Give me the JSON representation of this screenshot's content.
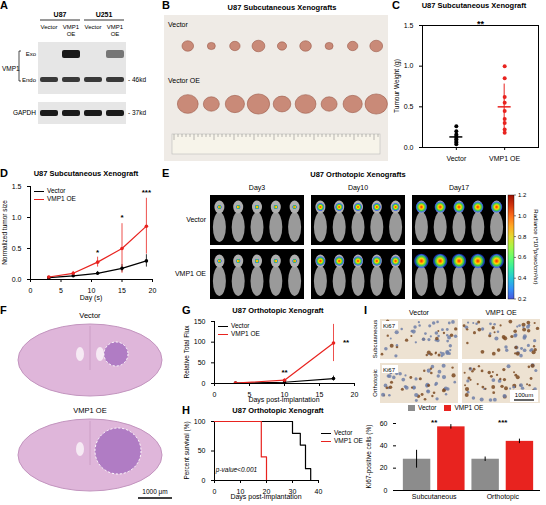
{
  "chart_data": [
    {
      "panel": "C",
      "type": "scatter",
      "title": "U87 Subcutaneous Xenograft",
      "y_label": "Tumour Weight (g)",
      "marker": "circle",
      "series": [
        {
          "name": "Vector",
          "color": "#000000",
          "values": [
            0.04,
            0.06,
            0.08,
            0.1,
            0.12,
            0.14,
            0.16,
            0.2,
            0.26
          ],
          "mean": 0.13,
          "sd": 0.07
        },
        {
          "name": "VMP1 OE",
          "color": "#e8231f",
          "values": [
            0.18,
            0.22,
            0.3,
            0.35,
            0.45,
            0.55,
            0.62,
            0.85,
            1.0
          ],
          "mean": 0.5,
          "sd": 0.28
        }
      ],
      "ylim": [
        0,
        1.5
      ],
      "yticks": [
        {
          "value": 0,
          "label": "0.0"
        },
        0.5,
        {
          "value": 1,
          "label": "1.0"
        },
        1.5
      ],
      "annotations": [
        {
          "text": "**"
        }
      ]
    },
    {
      "panel": "D",
      "type": "line",
      "title": "U87 Subcutaneous Xenograft",
      "x_label": "Day (s)",
      "y_label": "Normalized tumor size",
      "marker": "circle",
      "legend": "top-left",
      "x": [
        3,
        7,
        11,
        15,
        19
      ],
      "series": [
        {
          "name": "Vector",
          "color": "#000000",
          "values": [
            0.03,
            0.06,
            0.1,
            0.18,
            0.3
          ],
          "errors": [
            0.01,
            0.02,
            0.03,
            0.06,
            0.1
          ]
        },
        {
          "name": "VMP1 OE",
          "color": "#e8231f",
          "values": [
            0.04,
            0.1,
            0.28,
            0.5,
            0.86
          ],
          "errors": [
            0.01,
            0.03,
            0.08,
            0.4,
            0.45
          ]
        }
      ],
      "xlim": [
        0,
        20
      ],
      "xticks": [
        0,
        5,
        10,
        15,
        20
      ],
      "ylim": [
        0,
        1.5
      ],
      "yticks": [
        {
          "value": 0,
          "label": "0.0"
        },
        0.5,
        {
          "value": 1,
          "label": "1.0"
        },
        1.5
      ],
      "annotations": [
        {
          "x": 11,
          "y": 0.44,
          "text": "*"
        },
        {
          "x": 15,
          "y": 1.0,
          "text": "*"
        },
        {
          "x": 19,
          "y": 1.4,
          "text": "***"
        }
      ]
    },
    {
      "panel": "G",
      "type": "line",
      "title": "U87 Orthotopic Xenograft",
      "x_label": "Days post-implantation",
      "y_label": "Relative Total Flux",
      "marker": "circle",
      "legend": "top-left",
      "x": [
        3,
        10,
        17
      ],
      "series": [
        {
          "name": "Vector",
          "color": "#000000",
          "values": [
            1,
            3,
            12
          ],
          "errors": [
            0.5,
            1.5,
            6
          ]
        },
        {
          "name": "VMP1 OE",
          "color": "#e8231f",
          "values": [
            1,
            8,
            98
          ],
          "errors": [
            0.5,
            3,
            45
          ]
        }
      ],
      "xlim": [
        0,
        20
      ],
      "xticks": [
        0,
        5,
        10,
        15,
        20
      ],
      "ylim": [
        0,
        150
      ],
      "yticks": [
        0,
        50,
        100,
        150
      ],
      "annotations": [
        {
          "x": 10,
          "y": 26,
          "text": "**"
        },
        {
          "x": 18.8,
          "y": 100,
          "text": "**"
        }
      ]
    },
    {
      "panel": "H",
      "type": "line",
      "line_style": "step",
      "title": "U87 Orthotopic Xenograft",
      "x_label": "Days post-implantation",
      "y_label": "Percent survival (%)",
      "legend": "right",
      "series": [
        {
          "name": "Vector",
          "color": "#000000",
          "x": [
            0,
            30,
            33,
            35,
            37
          ],
          "values": [
            100,
            80,
            60,
            20,
            0
          ]
        },
        {
          "name": "VMP1 OE",
          "color": "#e8231f",
          "x": [
            0,
            18,
            20
          ],
          "values": [
            100,
            40,
            0
          ]
        }
      ],
      "xlim": [
        0,
        40
      ],
      "xticks": [
        0,
        10,
        20,
        30,
        40
      ],
      "ylim": [
        0,
        100
      ],
      "yticks": [
        0,
        50,
        100
      ],
      "annotations": [
        {
          "x": 0.5,
          "y": 18,
          "text": "p-value<0.001"
        }
      ]
    },
    {
      "panel": "I",
      "type": "bar",
      "y_label": "Ki67-positive cells (%)",
      "legend": "top",
      "categories": [
        "Subcutaneous",
        "Orthotopic"
      ],
      "series": [
        {
          "name": "Vector",
          "color": "#8c8c8c",
          "values": [
            28,
            28
          ],
          "errors": [
            8,
            2
          ]
        },
        {
          "name": "VMP1 OE",
          "color": "#e8231f",
          "values": [
            57,
            44
          ],
          "errors": [
            2,
            2
          ]
        }
      ],
      "ylim": [
        0,
        60
      ],
      "yticks": [
        0,
        20,
        40,
        60
      ],
      "annotations": [
        {
          "category": "Subcutaneous",
          "text": "**"
        },
        {
          "category": "Orthotopic",
          "text": "***"
        }
      ]
    }
  ],
  "panels": [
    {
      "panel": "A",
      "groups": [
        "U87",
        "U251"
      ],
      "lanes": [
        "Vector",
        "VMP1 OE",
        "Vector",
        "VMP1 OE"
      ],
      "blots": [
        {
          "label": "VMP1",
          "bands": [
            "Exo",
            "Endo"
          ],
          "size": "- 46kd"
        },
        {
          "label": "GAPDH",
          "size": "- 37kd"
        }
      ]
    },
    {
      "panel": "B",
      "title": "U87 Subcutaneous Xenografts",
      "rows": [
        "Vector",
        "Vector OE"
      ],
      "tumors": [
        9,
        9
      ]
    },
    {
      "panel": "E",
      "title": "U87 Orthotopic Xenografts",
      "columns": [
        "Day3",
        "Day10",
        "Day17"
      ],
      "rows": [
        "Vector",
        "VMP1 OE"
      ],
      "mice": [
        5,
        5
      ],
      "colorbar": {
        "label": "Radiance (*10⁹p/sec/cm²/sr)",
        "range": [
          0.2,
          1.2
        ],
        "ticks": [
          0.2,
          0.4,
          0.6,
          0.8,
          {
            "value": 1,
            "label": "1.0"
          },
          1.2
        ]
      }
    },
    {
      "panel": "F",
      "rows": [
        "Vector",
        "VMP1 OE"
      ],
      "scale_bar": "1000 μm"
    },
    {
      "columns": [
        "Vector",
        "VMP1 OE"
      ],
      "rows": [
        "Subcutaneous",
        "Orthotopic"
      ],
      "stain": "Ki67",
      "scale_bar": "100um"
    }
  ]
}
